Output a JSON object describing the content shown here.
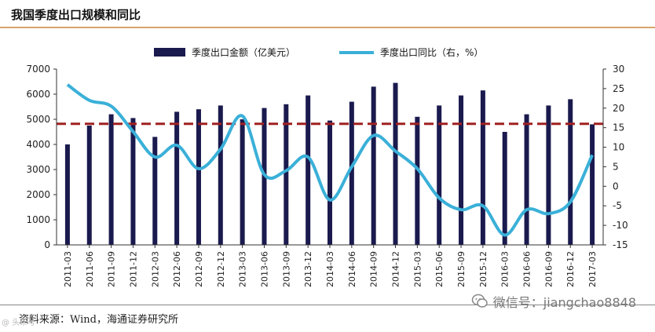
{
  "header": {
    "title": "我国季度出口规模和同比"
  },
  "footer": {
    "source": "资料来源：Wind，海通证券研究所"
  },
  "watermark": {
    "text": "微信号：jiangchao8848",
    "icon": "wechat-icon"
  },
  "corner_mark": {
    "text": "@ 头条号"
  },
  "colors": {
    "bar": "#1a1a4e",
    "line": "#3ab0d8",
    "reference": "#a02020"
  },
  "chart_data": {
    "type": "bar",
    "categories": [
      "2011-03",
      "2011-06",
      "2011-09",
      "2011-12",
      "2012-03",
      "2012-06",
      "2012-09",
      "2012-12",
      "2013-03",
      "2013-06",
      "2013-09",
      "2013-12",
      "2014-03",
      "2014-06",
      "2014-09",
      "2014-12",
      "2015-03",
      "2015-06",
      "2015-09",
      "2015-12",
      "2016-03",
      "2016-06",
      "2016-09",
      "2016-12",
      "2017-03"
    ],
    "series": [
      {
        "name": "季度出口金额（亿美元）",
        "type": "bar",
        "axis": "left",
        "values": [
          4000,
          4750,
          5200,
          5050,
          4300,
          5300,
          5400,
          5550,
          5000,
          5450,
          5600,
          5950,
          4950,
          5700,
          6300,
          6450,
          5100,
          5550,
          5950,
          6150,
          4500,
          5200,
          5550,
          5800,
          4800
        ]
      },
      {
        "name": "季度出口同比（右，%）",
        "type": "line",
        "axis": "right",
        "values": [
          26,
          22,
          20.5,
          14,
          7.5,
          10.5,
          4.5,
          9.5,
          18,
          3,
          4,
          7.5,
          -3.5,
          5,
          13,
          9,
          4.5,
          -3,
          -6,
          -5,
          -12.5,
          -6,
          -7,
          -4,
          8
        ]
      }
    ],
    "reference_line": {
      "axis": "left",
      "value": 4820
    },
    "y_left": {
      "min": 0,
      "max": 7000,
      "ticks": [
        0,
        1000,
        2000,
        3000,
        4000,
        5000,
        6000,
        7000
      ]
    },
    "y_right": {
      "min": -15,
      "max": 30,
      "ticks": [
        -15,
        -10,
        -5,
        0,
        5,
        10,
        15,
        20,
        25,
        30
      ]
    },
    "legend_position": "top-center",
    "grid": false
  }
}
